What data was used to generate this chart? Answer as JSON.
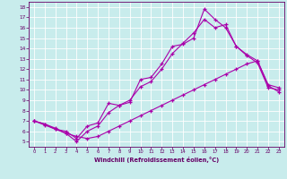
{
  "xlabel": "Windchill (Refroidissement éolien,°C)",
  "background_color": "#c8ecec",
  "line_color": "#aa00aa",
  "xlim": [
    -0.5,
    23.5
  ],
  "ylim": [
    4.5,
    18.5
  ],
  "xticks": [
    0,
    1,
    2,
    3,
    4,
    5,
    6,
    7,
    8,
    9,
    10,
    11,
    12,
    13,
    14,
    15,
    16,
    17,
    18,
    19,
    20,
    21,
    22,
    23
  ],
  "yticks": [
    5,
    6,
    7,
    8,
    9,
    10,
    11,
    12,
    13,
    14,
    15,
    16,
    17,
    18
  ],
  "line1_x": [
    0,
    1,
    2,
    3,
    4,
    5,
    6,
    7,
    8,
    9,
    10,
    11,
    12,
    13,
    14,
    15,
    16,
    17,
    18,
    19,
    20,
    21,
    22,
    23
  ],
  "line1_y": [
    7.0,
    6.7,
    6.3,
    5.8,
    5.5,
    5.3,
    5.5,
    6.0,
    6.5,
    7.0,
    7.5,
    8.0,
    8.5,
    9.0,
    9.5,
    10.0,
    10.5,
    11.0,
    11.5,
    12.0,
    12.5,
    12.8,
    10.4,
    9.8
  ],
  "line2_x": [
    0,
    1,
    2,
    3,
    4,
    5,
    6,
    7,
    8,
    9,
    10,
    11,
    12,
    13,
    14,
    15,
    16,
    17,
    18,
    19,
    20,
    21,
    22,
    23
  ],
  "line2_y": [
    7.0,
    6.7,
    6.2,
    6.0,
    5.3,
    6.5,
    6.8,
    8.7,
    8.5,
    8.8,
    11.0,
    11.2,
    12.5,
    14.2,
    14.4,
    15.0,
    17.8,
    16.8,
    16.0,
    14.2,
    13.4,
    12.8,
    10.5,
    10.2
  ],
  "line3_x": [
    0,
    1,
    2,
    3,
    4,
    5,
    6,
    7,
    8,
    9,
    10,
    11,
    12,
    13,
    14,
    15,
    16,
    17,
    18,
    19,
    20,
    21,
    22,
    23
  ],
  "line3_y": [
    7.0,
    6.6,
    6.2,
    5.8,
    5.0,
    6.0,
    6.5,
    7.8,
    8.5,
    9.0,
    10.3,
    10.8,
    12.0,
    13.5,
    14.5,
    15.5,
    16.8,
    16.0,
    16.3,
    14.2,
    13.3,
    12.6,
    10.2,
    10.0
  ]
}
